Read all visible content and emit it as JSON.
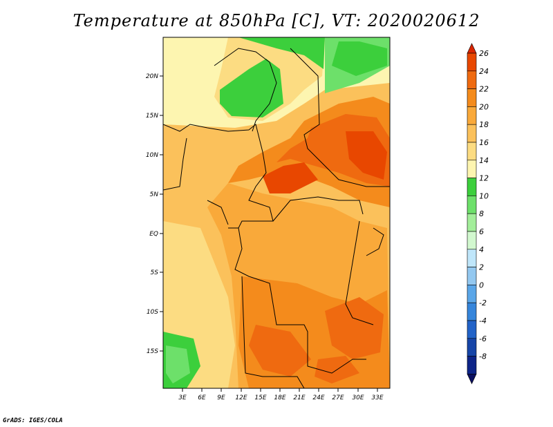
{
  "title": "Temperature at 850hPa [C], VT: 2020020612",
  "credit": "GrADS: IGES/COLA",
  "map": {
    "lat_labels": [
      "20N",
      "15N",
      "10N",
      "5N",
      "EQ",
      "5S",
      "10S",
      "15S"
    ],
    "lon_labels": [
      "3E",
      "6E",
      "9E",
      "12E",
      "15E",
      "18E",
      "21E",
      "24E",
      "27E",
      "30E",
      "33E"
    ]
  },
  "colorbar": {
    "labels": [
      "26",
      "24",
      "22",
      "20",
      "18",
      "16",
      "14",
      "12",
      "10",
      "8",
      "6",
      "4",
      "2",
      "0",
      "-2",
      "-4",
      "-6",
      "-8"
    ],
    "colors": [
      "#d92500",
      "#e84700",
      "#ef6a10",
      "#f48b1c",
      "#f9a93a",
      "#fbc15b",
      "#fcdc82",
      "#fdf5b0",
      "#3ccf3c",
      "#6de06a",
      "#a3ee9a",
      "#d2f8cf",
      "#bfe6fa",
      "#93c8f0",
      "#5aa6e8",
      "#3585db",
      "#2263c8",
      "#1645a8",
      "#0d2488",
      "#0b0f60"
    ]
  }
}
